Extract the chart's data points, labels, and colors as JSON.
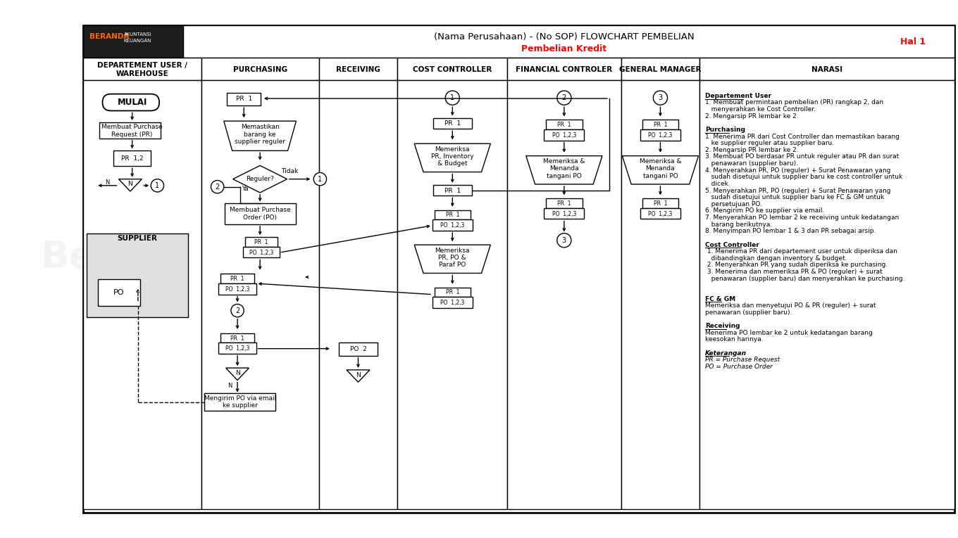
{
  "title_main": "(Nama Perusahaan) - (No SOP) FLOWCHART PEMBELIAN",
  "title_sub": "Pembelian Kredit",
  "title_sub_color": "#FF0000",
  "hal": "Hal 1",
  "hal_color": "#FF0000",
  "bg_color": "#FFFFFF",
  "columns": [
    "DEPARTEMENT USER /\nWAREHOUSE",
    "PURCHASING",
    "RECEIVING",
    "COST CONTROLLER",
    "FINANCIAL CONTROLER",
    "GENERAL MANAGER",
    "NARASI"
  ],
  "narasi_lines": [
    {
      "text": "Departement User",
      "bold": true,
      "underline": true,
      "italic": false
    },
    {
      "text": "1. Membuat permintaan pembelian (PR) rangkap 2, dan",
      "bold": false,
      "underline": false,
      "italic": false
    },
    {
      "text": "   menyerahkan ke Cost Controller.",
      "bold": false,
      "underline": false,
      "italic": false
    },
    {
      "text": "2. Mengarsip PR lembar ke 2.",
      "bold": false,
      "underline": false,
      "italic": false
    },
    {
      "text": "",
      "bold": false,
      "underline": false,
      "italic": false
    },
    {
      "text": "Purchasing",
      "bold": true,
      "underline": true,
      "italic": false
    },
    {
      "text": "1. Menerima PR dari Cost Controller dan memastikan barang",
      "bold": false,
      "underline": false,
      "italic": false
    },
    {
      "text": "   ke supplier reguler atau supplier baru.",
      "bold": false,
      "underline": false,
      "italic": false
    },
    {
      "text": "2. Mengarsip PR lembar ke 2.",
      "bold": false,
      "underline": false,
      "italic": false
    },
    {
      "text": "3. Membuat PO berdasar PR untuk reguler atau PR dan surat",
      "bold": false,
      "underline": false,
      "italic": false
    },
    {
      "text": "   penawaran (supplier baru).",
      "bold": false,
      "underline": false,
      "italic": false
    },
    {
      "text": "4. Menyerahkan PR, PO (reguler) + Surat Penawaran yang",
      "bold": false,
      "underline": false,
      "italic": false
    },
    {
      "text": "   sudah disetujui untuk supplier baru ke cost controller untuk",
      "bold": false,
      "underline": false,
      "italic": false
    },
    {
      "text": "   dicek.",
      "bold": false,
      "underline": false,
      "italic": false
    },
    {
      "text": "5. Menyerahkan PR, PO (reguler) + Surat Penawaran yang",
      "bold": false,
      "underline": false,
      "italic": false
    },
    {
      "text": "   sudah disetujui untuk supplier baru ke FC & GM untuk",
      "bold": false,
      "underline": false,
      "italic": false
    },
    {
      "text": "   persetujuan PO.",
      "bold": false,
      "underline": false,
      "italic": false
    },
    {
      "text": "6. Mengirim PO ke supplier via email.",
      "bold": false,
      "underline": false,
      "italic": false
    },
    {
      "text": "7. Menyerahkan PO lembar 2 ke receiving untuk kedatangan",
      "bold": false,
      "underline": false,
      "italic": false
    },
    {
      "text": "   barang berikutnya.",
      "bold": false,
      "underline": false,
      "italic": false
    },
    {
      "text": "8. Menyimpan PO lembar 1 & 3 dan PR sebagai arsip.",
      "bold": false,
      "underline": false,
      "italic": false
    },
    {
      "text": "",
      "bold": false,
      "underline": false,
      "italic": false
    },
    {
      "text": "Cost Controller",
      "bold": true,
      "underline": true,
      "italic": false
    },
    {
      "text": " 1. Menerima PR dari departement user untuk diperiksa dan",
      "bold": false,
      "underline": false,
      "italic": false
    },
    {
      "text": "   dibandingkan dengan inventory & budget.",
      "bold": false,
      "underline": false,
      "italic": false
    },
    {
      "text": " 2. Menyerahkan PR yang sudah diperiksa ke purchasing.",
      "bold": false,
      "underline": false,
      "italic": false
    },
    {
      "text": " 3. Menerima dan memeriksa PR & PO (reguler) + surat",
      "bold": false,
      "underline": false,
      "italic": false
    },
    {
      "text": "   penawaran (supplier baru) dan menyerahkan ke purchasing.",
      "bold": false,
      "underline": false,
      "italic": false
    },
    {
      "text": "",
      "bold": false,
      "underline": false,
      "italic": false
    },
    {
      "text": "",
      "bold": false,
      "underline": false,
      "italic": false
    },
    {
      "text": "FC & GM",
      "bold": true,
      "underline": true,
      "italic": false
    },
    {
      "text": "Memeriksa dan menyetujui PO & PR (reguler) + surat",
      "bold": false,
      "underline": false,
      "italic": false
    },
    {
      "text": "penawaran (supplier baru).",
      "bold": false,
      "underline": false,
      "italic": false
    },
    {
      "text": "",
      "bold": false,
      "underline": false,
      "italic": false
    },
    {
      "text": "Receiving",
      "bold": true,
      "underline": true,
      "italic": false
    },
    {
      "text": "Menerima PO lembar ke 2 untuk kedatangan barang",
      "bold": false,
      "underline": false,
      "italic": false
    },
    {
      "text": "keesokan harinya.",
      "bold": false,
      "underline": false,
      "italic": false
    },
    {
      "text": "",
      "bold": false,
      "underline": false,
      "italic": false
    },
    {
      "text": "Keterangan",
      "bold": true,
      "underline": true,
      "italic": true
    },
    {
      "text": "PR = Purchase Request",
      "bold": false,
      "underline": false,
      "italic": true
    },
    {
      "text": "PO = Purchase Order",
      "bold": false,
      "underline": false,
      "italic": true
    }
  ]
}
